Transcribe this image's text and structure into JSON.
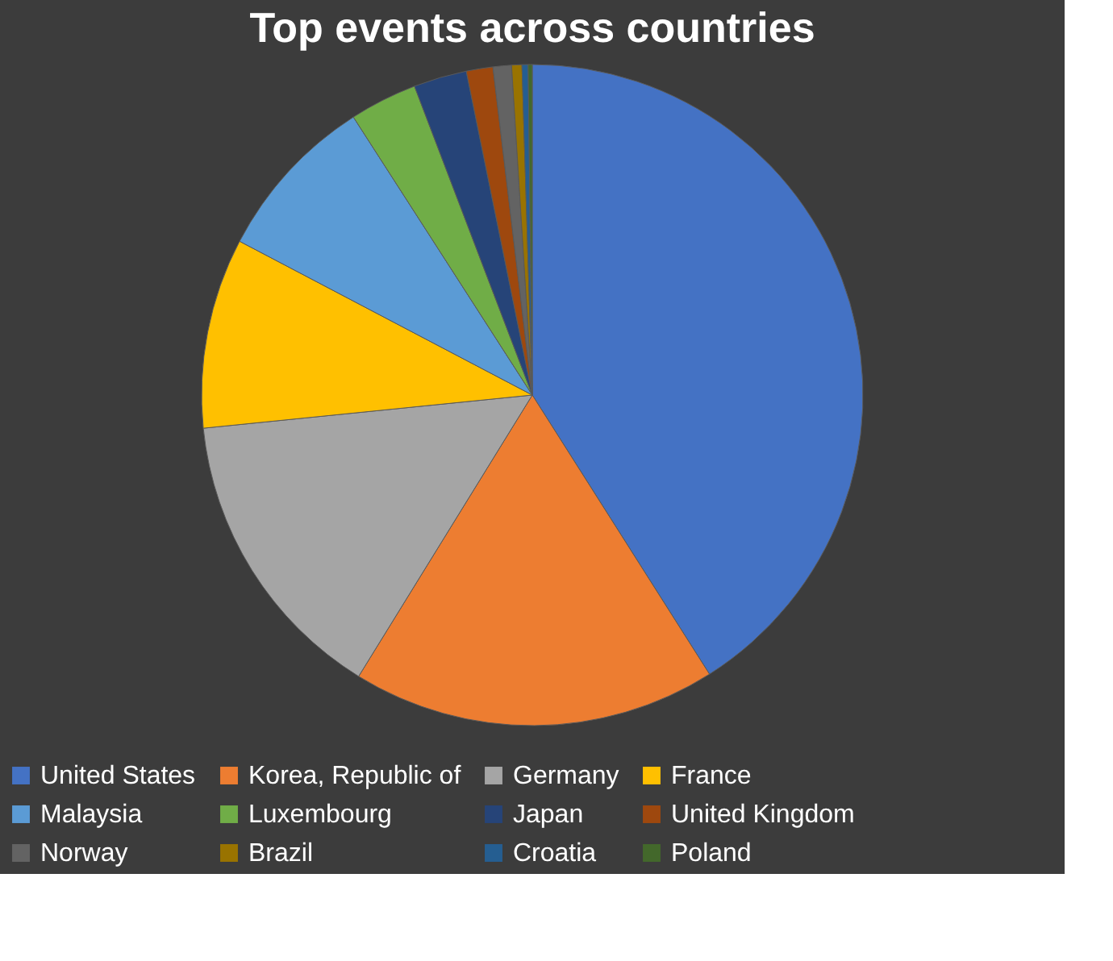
{
  "chart_data": {
    "type": "pie",
    "title": "Top events across countries",
    "categories": [
      "United States",
      "Korea, Republic of",
      "Germany",
      "France",
      "Malaysia",
      "Luxembourg",
      "Japan",
      "United Kingdom",
      "Norway",
      "Brazil",
      "Croatia",
      "Poland"
    ],
    "values": [
      41.0,
      17.8,
      14.6,
      9.3,
      8.2,
      3.3,
      2.6,
      1.3,
      0.9,
      0.5,
      0.3,
      0.2
    ],
    "colors": [
      "#4472c4",
      "#ed7d31",
      "#a5a5a5",
      "#ffc000",
      "#5b9bd5",
      "#70ad47",
      "#264478",
      "#9e480e",
      "#636363",
      "#997300",
      "#255e91",
      "#43682b"
    ],
    "legend": "bottom"
  }
}
